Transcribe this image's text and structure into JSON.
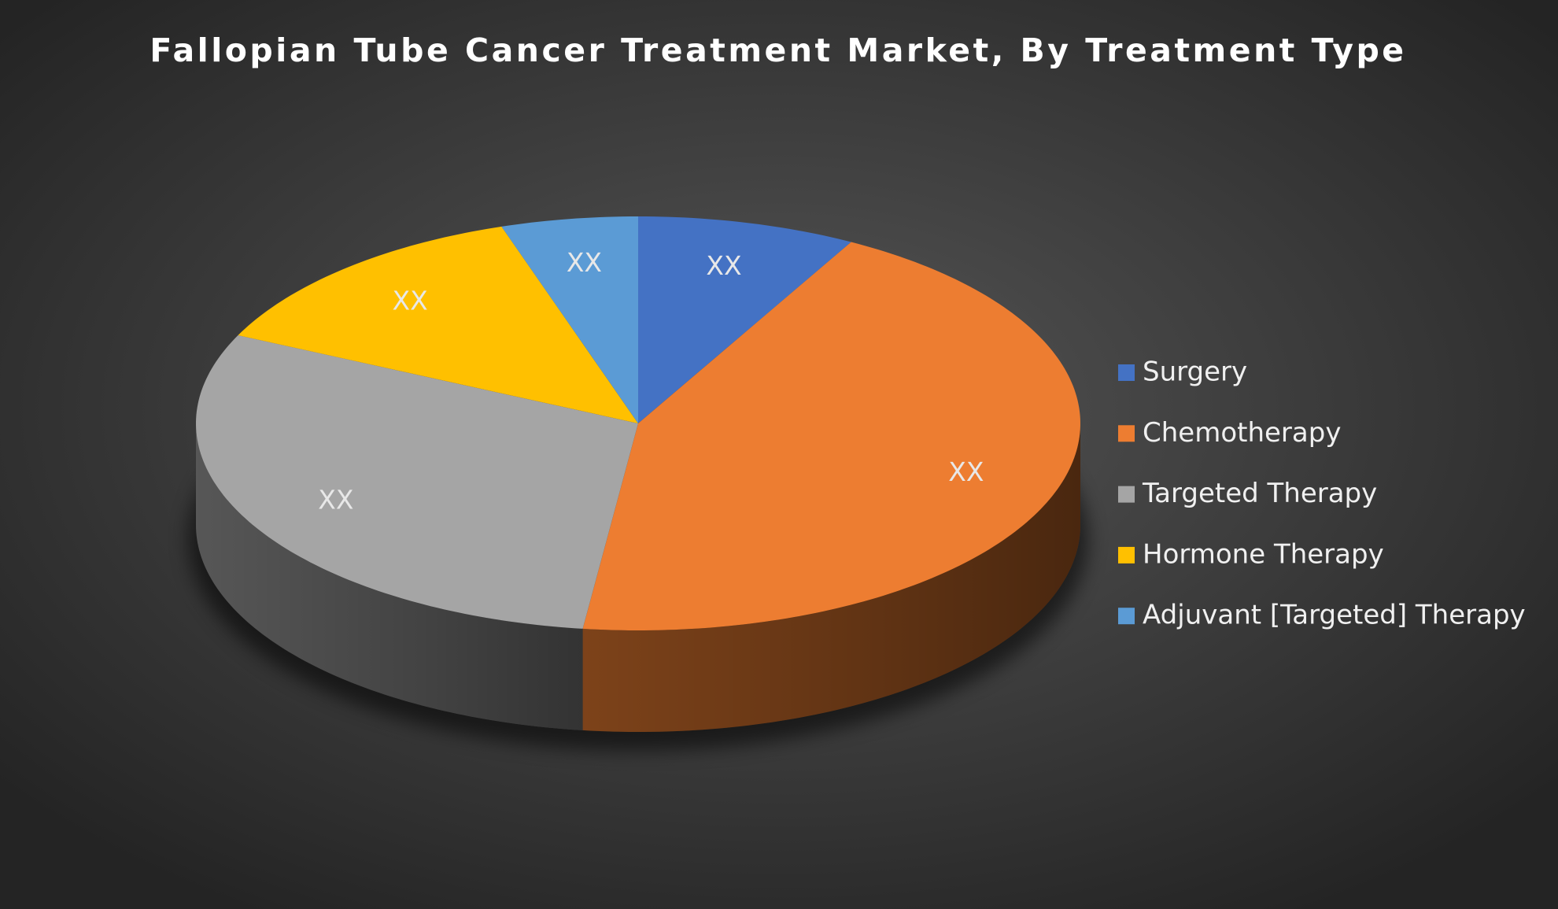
{
  "chart_data": {
    "type": "pie",
    "title": "Fallopian Tube Cancer Treatment Market, By Treatment Type",
    "categories": [
      "Surgery",
      "Chemotherapy",
      "Targeted Therapy",
      "Hormone Therapy",
      "Adjuvant [Targeted] Therapy"
    ],
    "values": [
      8,
      44,
      30,
      13,
      5
    ],
    "value_labels": [
      "XX",
      "XX",
      "XX",
      "XX",
      "XX"
    ],
    "colors": [
      "#4472c4",
      "#ed7d31",
      "#a5a5a5",
      "#ffc000",
      "#5b9bd5"
    ],
    "legend": "right"
  }
}
